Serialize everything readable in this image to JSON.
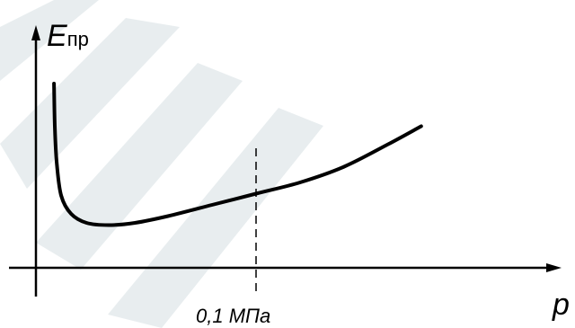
{
  "chart_data": {
    "type": "line",
    "ylabel_main": "E",
    "ylabel_sub": "пр",
    "xlabel": "p",
    "annotation": "0,1 МПа",
    "reference_x": 0.1,
    "xlim": [
      0,
      0.21
    ],
    "ylim": [
      0,
      1
    ],
    "grid": false,
    "series": [
      {
        "x": [
          0.0082,
          0.0086,
          0.0095,
          0.0115,
          0.016,
          0.023,
          0.033,
          0.045,
          0.06,
          0.08,
          0.1,
          0.12,
          0.14,
          0.16,
          0.175
        ],
        "y": [
          0.82,
          0.62,
          0.46,
          0.32,
          0.24,
          0.2,
          0.19,
          0.2,
          0.23,
          0.28,
          0.33,
          0.38,
          0.45,
          0.55,
          0.63
        ]
      }
    ],
    "colors": {
      "curve": "#000000",
      "axes": "#000000",
      "watermark": "#e6ecee"
    }
  }
}
